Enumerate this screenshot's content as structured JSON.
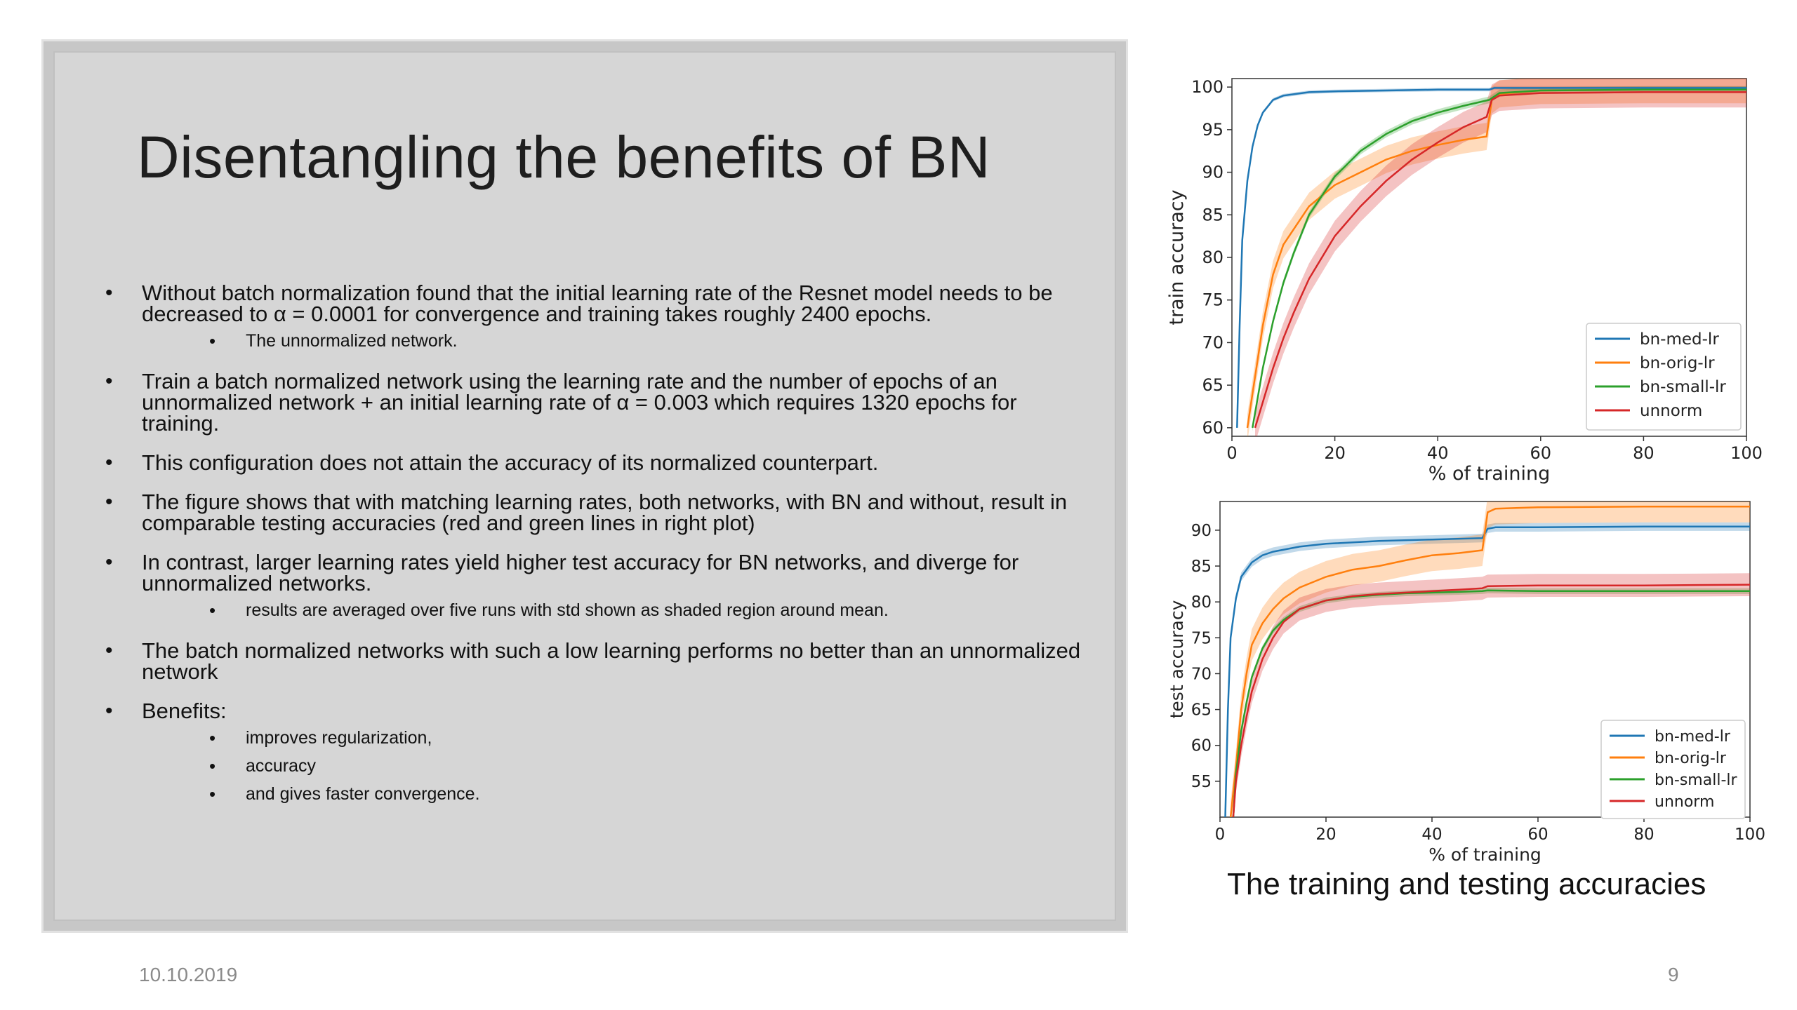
{
  "slide": {
    "title": "Disentangling the benefits of BN",
    "bullets": [
      {
        "text": "Without batch normalization found that the initial learning rate of the Resnet model needs to be decreased to α = 0.0001 for convergence and training takes roughly 2400 epochs.",
        "sub": [
          "The unnormalized network."
        ]
      },
      {
        "text": "Train a batch normalized network using the learning rate and the number of epochs of an unnormalized network + an initial learning rate of  α = 0.003 which requires 1320 epochs for training.",
        "sub": []
      },
      {
        "text": "This configuration does not attain the accuracy of its normalized counterpart.",
        "sub": []
      },
      {
        "text": "The figure shows that with matching learning rates, both networks, with BN and without, result in comparable testing accuracies (red and green lines in right plot)",
        "sub": []
      },
      {
        "text": "In contrast, larger learning rates yield higher test accuracy for BN networks, and diverge for unnormalized networks.",
        "sub": [
          "results are averaged over five runs with std shown as shaded region around mean."
        ]
      },
      {
        "text": "The batch normalized networks with such a low learning performs no better than an unnormalized network",
        "sub": []
      },
      {
        "text": "Benefits:",
        "sub": [
          "improves regularization,",
          "accuracy",
          "and gives faster convergence."
        ]
      }
    ],
    "caption": "The training and testing accuracies",
    "date": "10.10.2019",
    "page_number": "9"
  },
  "chart_data": [
    {
      "type": "line",
      "xlabel": "% of training",
      "ylabel": "train accuracy",
      "xlim": [
        0,
        100
      ],
      "ylim": [
        59,
        101
      ],
      "xticks": [
        0,
        20,
        40,
        60,
        80,
        100
      ],
      "yticks": [
        60,
        65,
        70,
        75,
        80,
        85,
        90,
        95,
        100
      ],
      "grid": false,
      "legend": "bottom-right",
      "series": [
        {
          "name": "bn-med-lr",
          "color": "#1f77b4",
          "x": [
            1,
            1.5,
            2,
            3,
            4,
            5,
            6,
            8,
            10,
            15,
            20,
            30,
            40,
            50,
            51,
            60,
            80,
            100
          ],
          "y": [
            60,
            72,
            82,
            89,
            93,
            95.5,
            97,
            98.5,
            99,
            99.4,
            99.5,
            99.6,
            99.7,
            99.7,
            99.9,
            99.9,
            99.9,
            99.9
          ],
          "spread": 0.2
        },
        {
          "name": "bn-orig-lr",
          "color": "#ff7f0e",
          "x": [
            3,
            4,
            5,
            6,
            8,
            10,
            15,
            20,
            25,
            30,
            35,
            40,
            45,
            49.5,
            50.5,
            52,
            60,
            80,
            100
          ],
          "y": [
            60,
            64,
            68,
            72,
            78,
            81.5,
            86,
            88.5,
            90,
            91.5,
            92.5,
            93.2,
            93.8,
            94.2,
            98.5,
            99.2,
            99.6,
            99.7,
            99.7
          ],
          "spread": 1.6
        },
        {
          "name": "bn-small-lr",
          "color": "#2ca02c",
          "x": [
            4,
            5,
            6,
            8,
            10,
            12,
            15,
            20,
            25,
            30,
            35,
            40,
            45,
            50,
            52,
            60,
            80,
            100
          ],
          "y": [
            60,
            63.5,
            67,
            72.5,
            77,
            80.5,
            85,
            89.5,
            92.5,
            94.5,
            96,
            97,
            97.8,
            98.5,
            99.3,
            99.6,
            99.7,
            99.7
          ],
          "spread": 0.4
        },
        {
          "name": "unnorm",
          "color": "#d62728",
          "x": [
            4.5,
            6,
            8,
            10,
            12,
            15,
            20,
            25,
            30,
            35,
            40,
            45,
            49.5,
            50.5,
            52,
            60,
            80,
            100
          ],
          "y": [
            60,
            63,
            67,
            70.5,
            73.5,
            77.5,
            82.5,
            86,
            89,
            91.5,
            93.5,
            95.3,
            96.5,
            98.5,
            99,
            99.3,
            99.4,
            99.4
          ],
          "spread": 1.8
        }
      ]
    },
    {
      "type": "line",
      "xlabel": "% of training",
      "ylabel": "test accuracy",
      "xlim": [
        0,
        100
      ],
      "ylim": [
        50,
        94
      ],
      "xticks": [
        0,
        20,
        40,
        60,
        80,
        100
      ],
      "yticks": [
        55,
        60,
        65,
        70,
        75,
        80,
        85,
        90
      ],
      "grid": false,
      "legend": "bottom-right",
      "series": [
        {
          "name": "bn-med-lr",
          "color": "#1f77b4",
          "x": [
            1,
            1.5,
            2,
            3,
            4,
            6,
            8,
            10,
            15,
            20,
            30,
            40,
            49.5,
            50.5,
            52,
            60,
            80,
            100
          ],
          "y": [
            50,
            65,
            75,
            80.5,
            83.5,
            85.5,
            86.5,
            87,
            87.7,
            88.1,
            88.5,
            88.7,
            88.9,
            90.2,
            90.4,
            90.4,
            90.5,
            90.5
          ],
          "spread": 0.6
        },
        {
          "name": "bn-orig-lr",
          "color": "#ff7f0e",
          "x": [
            2,
            3,
            4,
            5,
            6,
            8,
            10,
            12,
            15,
            20,
            25,
            30,
            35,
            40,
            45,
            49.5,
            50.5,
            52,
            60,
            80,
            100
          ],
          "y": [
            50,
            57,
            65,
            70,
            74,
            77,
            79,
            80.5,
            82,
            83.5,
            84.5,
            85,
            85.8,
            86.5,
            86.8,
            87.2,
            92.5,
            93,
            93.2,
            93.3,
            93.3
          ],
          "spread": 2.2
        },
        {
          "name": "bn-small-lr",
          "color": "#2ca02c",
          "x": [
            2.5,
            3,
            4,
            5,
            6,
            8,
            10,
            12,
            15,
            20,
            25,
            30,
            35,
            40,
            45,
            49.5,
            50.5,
            60,
            80,
            100
          ],
          "y": [
            50,
            56,
            62,
            66,
            69.5,
            73.5,
            76,
            77.5,
            79,
            80.2,
            80.7,
            81,
            81.2,
            81.3,
            81.4,
            81.5,
            81.6,
            81.5,
            81.5,
            81.5
          ],
          "spread": 0.4
        },
        {
          "name": "unnorm",
          "color": "#d62728",
          "x": [
            2.5,
            3,
            4,
            5,
            6,
            8,
            10,
            12,
            15,
            20,
            25,
            30,
            35,
            40,
            45,
            49.5,
            50.5,
            60,
            80,
            100
          ],
          "y": [
            50,
            55,
            60,
            64,
            67.5,
            72,
            75,
            77.2,
            79,
            80.2,
            80.8,
            81.1,
            81.3,
            81.5,
            81.7,
            81.9,
            82.2,
            82.3,
            82.3,
            82.4
          ],
          "spread": 1.6
        }
      ]
    }
  ]
}
